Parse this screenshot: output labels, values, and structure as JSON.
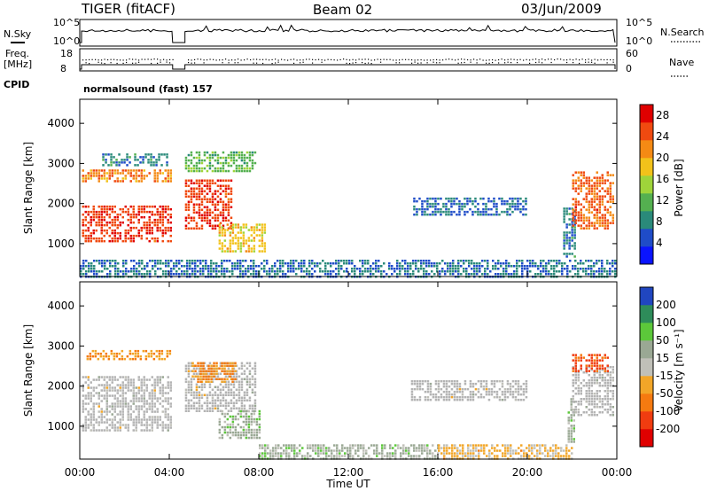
{
  "header": {
    "station": "TIGER (fitACF)",
    "beam": "Beam 02",
    "date": "03/Jun/2009"
  },
  "top_panels": {
    "nsky_label": "N.Sky",
    "nsky_ticks": [
      "10^5",
      "10^0"
    ],
    "nsearch_label": "N.Search",
    "nsearch_ticks": [
      "10^5",
      "10^0"
    ],
    "freq_label": "Freq.",
    "freq_unit": "[MHz]",
    "freq_ticks": [
      "18",
      "8"
    ],
    "nave_label": "Nave",
    "nave_ticks": [
      "60",
      "0"
    ],
    "cpid_label": "CPID",
    "cpid_value": "normalsound (fast) 157"
  },
  "colors": {
    "power_scale": [
      "#0a14ff",
      "#1f4cc8",
      "#2a8a7a",
      "#54b050",
      "#9fd43a",
      "#f2c21a",
      "#f48a14",
      "#f04a10",
      "#e00000"
    ],
    "velocity_scale": [
      "#e00000",
      "#f03c10",
      "#f57a10",
      "#f2a628",
      "#c0c0b8",
      "#9aa894",
      "#5cc83a",
      "#2e8c5a",
      "#2046c0"
    ],
    "ground_scatter": "#b4b4b4"
  },
  "chart_data": [
    {
      "type": "heatmap",
      "title": "",
      "xlabel": "",
      "ylabel": "Slant Range [km]",
      "xlim_hours": [
        0,
        24
      ],
      "ylim": [
        180,
        4600
      ],
      "yticks": [
        1000,
        2000,
        3000,
        4000
      ],
      "colorbar": {
        "label": "Power [dB]",
        "ticks": [
          "4",
          "8",
          "12",
          "16",
          "20",
          "24",
          "28"
        ],
        "range": [
          0,
          30
        ]
      },
      "regions": [
        {
          "t0": 0.1,
          "t1": 4.1,
          "r0": 1050,
          "r1": 1950,
          "value": 26
        },
        {
          "t0": 0.1,
          "t1": 4.1,
          "r0": 2550,
          "r1": 2850,
          "value": 22
        },
        {
          "t0": 1.0,
          "t1": 3.9,
          "r0": 2950,
          "r1": 3250,
          "value": 8
        },
        {
          "t0": 4.7,
          "t1": 6.8,
          "r0": 1400,
          "r1": 2600,
          "value": 26
        },
        {
          "t0": 4.7,
          "t1": 7.8,
          "r0": 2800,
          "r1": 3300,
          "value": 12
        },
        {
          "t0": 6.2,
          "t1": 8.3,
          "r0": 800,
          "r1": 1500,
          "value": 18
        },
        {
          "t0": 14.9,
          "t1": 19.9,
          "r0": 1700,
          "r1": 2150,
          "value": 6
        },
        {
          "t0": 21.6,
          "t1": 22.1,
          "r0": 700,
          "r1": 1900,
          "value": 8
        },
        {
          "t0": 22.0,
          "t1": 23.9,
          "r0": 1350,
          "r1": 2800,
          "value": 24
        },
        {
          "t0": 0.0,
          "t1": 24.0,
          "r0": 200,
          "r1": 600,
          "value": 7
        }
      ]
    },
    {
      "type": "heatmap",
      "title": "",
      "xlabel": "Time UT",
      "ylabel": "Slant Range [km]",
      "xlim_hours": [
        0,
        24
      ],
      "ylim": [
        180,
        4600
      ],
      "yticks": [
        1000,
        2000,
        3000,
        4000
      ],
      "xticks": [
        "00:00",
        "04:00",
        "08:00",
        "12:00",
        "16:00",
        "20:00",
        "00:00"
      ],
      "colorbar": {
        "label": "Velocity [m s⁻¹]",
        "ticks": [
          "200",
          "100",
          "50",
          "15",
          "-15",
          "-50",
          "-100",
          "-200"
        ],
        "range": [
          -250,
          250
        ]
      },
      "regions": [
        {
          "t0": 0.1,
          "t1": 4.1,
          "r0": 900,
          "r1": 2250,
          "value": 0,
          "ground": true
        },
        {
          "t0": 0.3,
          "t1": 4.0,
          "r0": 2650,
          "r1": 2900,
          "value": -80
        },
        {
          "t0": 4.7,
          "t1": 7.9,
          "r0": 1400,
          "r1": 2600,
          "value": 0,
          "ground": true
        },
        {
          "t0": 5.0,
          "t1": 7.0,
          "r0": 2100,
          "r1": 2600,
          "value": -90
        },
        {
          "t0": 6.2,
          "t1": 8.0,
          "r0": 700,
          "r1": 1400,
          "value": 60
        },
        {
          "t0": 14.8,
          "t1": 20.0,
          "r0": 1650,
          "r1": 2150,
          "value": 0,
          "ground": true
        },
        {
          "t0": 21.8,
          "t1": 22.1,
          "r0": 600,
          "r1": 1700,
          "value": 55
        },
        {
          "t0": 22.0,
          "t1": 23.9,
          "r0": 1300,
          "r1": 2500,
          "value": 0,
          "ground": true
        },
        {
          "t0": 22.0,
          "t1": 23.6,
          "r0": 2350,
          "r1": 2800,
          "value": -150
        },
        {
          "t0": 8.0,
          "t1": 16.0,
          "r0": 200,
          "r1": 550,
          "value": 45
        },
        {
          "t0": 16.0,
          "t1": 22.0,
          "r0": 200,
          "r1": 550,
          "value": -40
        }
      ]
    }
  ]
}
